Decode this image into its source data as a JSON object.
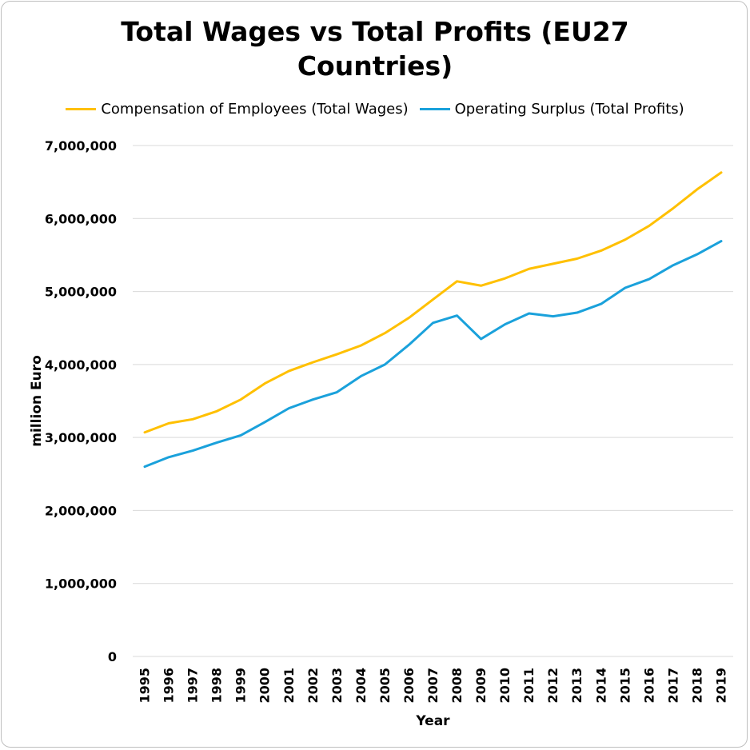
{
  "chart_data": {
    "type": "line",
    "title_lines": [
      "Total Wages vs Total Profits (EU27",
      "Countries)"
    ],
    "xlabel": "Year",
    "ylabel": "million Euro",
    "ylim": [
      0,
      7000000
    ],
    "y_ticks": [
      0,
      1000000,
      2000000,
      3000000,
      4000000,
      5000000,
      6000000,
      7000000
    ],
    "y_tick_labels": [
      "0",
      "1,000,000",
      "2,000,000",
      "3,000,000",
      "4,000,000",
      "5,000,000",
      "6,000,000",
      "7,000,000"
    ],
    "grid": true,
    "legend_position": "top-center",
    "categories": [
      "1995",
      "1996",
      "1997",
      "1998",
      "1999",
      "2000",
      "2001",
      "2002",
      "2003",
      "2004",
      "2005",
      "2006",
      "2007",
      "2008",
      "2009",
      "2010",
      "2011",
      "2012",
      "2013",
      "2014",
      "2015",
      "2016",
      "2017",
      "2018",
      "2019"
    ],
    "series": [
      {
        "name": "Compensation of Employees (Total Wages)",
        "color": "#FFC000",
        "values": [
          3070000,
          3195000,
          3250000,
          3360000,
          3520000,
          3740000,
          3910000,
          4030000,
          4140000,
          4260000,
          4430000,
          4640000,
          4890000,
          5140000,
          5080000,
          5180000,
          5310000,
          5380000,
          5450000,
          5560000,
          5710000,
          5900000,
          6140000,
          6400000,
          6630000
        ]
      },
      {
        "name": "Operating Surplus (Total Profits)",
        "color": "#1AA1DB",
        "values": [
          2600000,
          2730000,
          2820000,
          2930000,
          3030000,
          3210000,
          3400000,
          3520000,
          3620000,
          3840000,
          4000000,
          4270000,
          4570000,
          4670000,
          4350000,
          4550000,
          4700000,
          4660000,
          4710000,
          4830000,
          5050000,
          5170000,
          5360000,
          5510000,
          5690000
        ]
      }
    ]
  }
}
